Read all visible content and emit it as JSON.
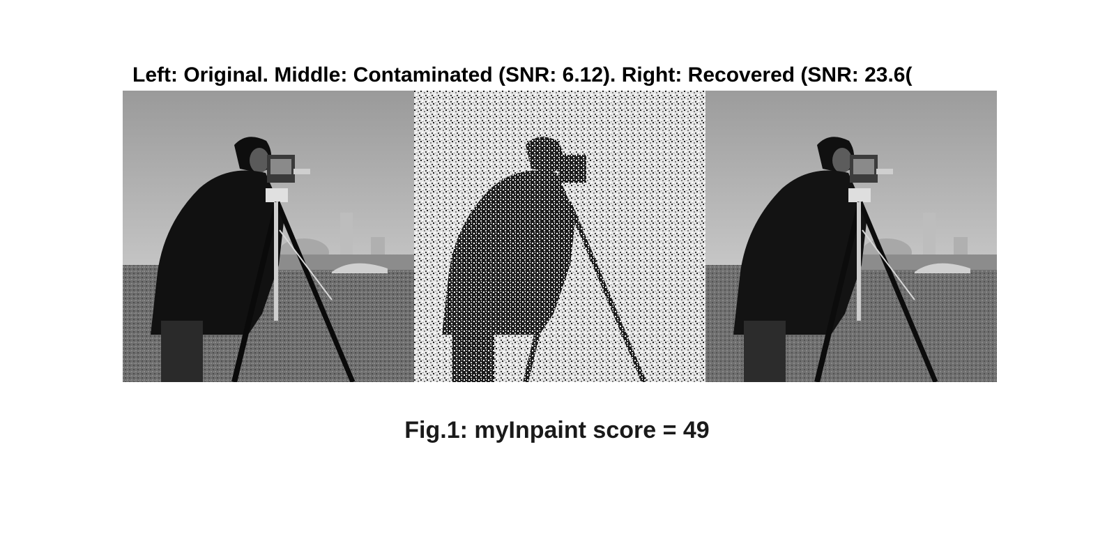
{
  "figure": {
    "title": "Left: Original.  Middle: Contaminated (SNR: 6.12).  Right: Recovered (SNR: 23.6(",
    "caption": "Fig.1: myInpaint score = 49"
  },
  "panels": [
    {
      "role": "original"
    },
    {
      "role": "contaminated"
    },
    {
      "role": "recovered"
    }
  ]
}
